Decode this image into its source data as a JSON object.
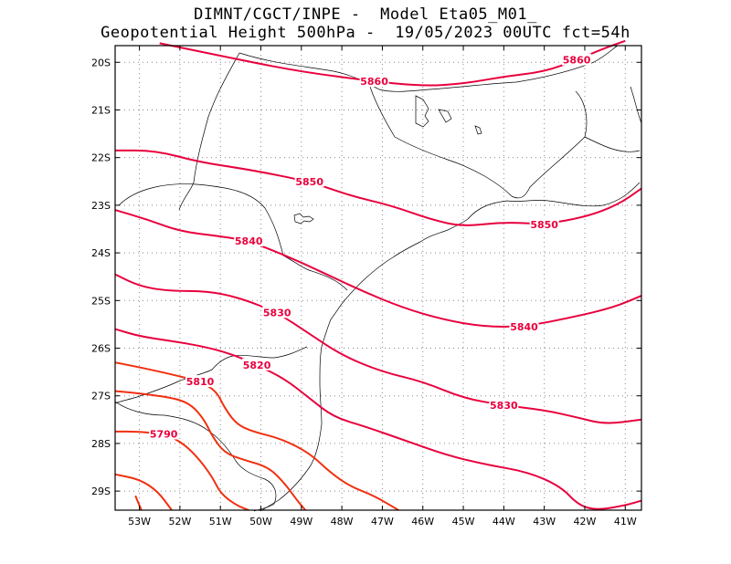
{
  "header": {
    "line1": "DIMNT/CGCT/INPE -  Model Eta05_M01_",
    "line2": "Geopotential Height 500hPa -  19/05/2023 00UTC fct=54h"
  },
  "axes": {
    "lat_labels": [
      "20S",
      "21S",
      "22S",
      "23S",
      "24S",
      "25S",
      "26S",
      "27S",
      "28S",
      "29S"
    ],
    "lon_labels": [
      "53W",
      "52W",
      "51W",
      "50W",
      "49W",
      "48W",
      "47W",
      "46W",
      "45W",
      "44W",
      "43W",
      "42W",
      "41W"
    ],
    "lon_range": [
      -53.6,
      -40.6
    ],
    "lat_range": [
      -29.4,
      -19.65
    ],
    "grid": "dotted"
  },
  "contours": {
    "units": "gpm",
    "colors": {
      "high": "#e8003d",
      "low": "#f03010",
      "coast": "#000000"
    },
    "lines": [
      {
        "level": 5860,
        "labels": [
          "5860",
          "5860"
        ],
        "points": [
          [
            -52.5,
            -19.6
          ],
          [
            -50.5,
            -19.95
          ],
          [
            -49,
            -20.2
          ],
          [
            -47.2,
            -20.4
          ],
          [
            -46,
            -20.5
          ],
          [
            -45,
            -20.45
          ],
          [
            -44,
            -20.3
          ],
          [
            -43,
            -20.2
          ],
          [
            -42.2,
            -19.95
          ],
          [
            -41.5,
            -19.7
          ],
          [
            -41,
            -19.55
          ]
        ]
      },
      {
        "level": 5850,
        "labels": [
          "5850",
          "5850"
        ],
        "points": [
          [
            -53.6,
            -21.85
          ],
          [
            -52.6,
            -21.85
          ],
          [
            -51.5,
            -22.1
          ],
          [
            -50.3,
            -22.25
          ],
          [
            -48.8,
            -22.5
          ],
          [
            -47.8,
            -22.8
          ],
          [
            -46.8,
            -23.0
          ],
          [
            -45.8,
            -23.3
          ],
          [
            -45,
            -23.45
          ],
          [
            -44,
            -23.35
          ],
          [
            -43,
            -23.4
          ],
          [
            -42,
            -23.25
          ],
          [
            -41.2,
            -23.0
          ],
          [
            -40.6,
            -22.65
          ]
        ]
      },
      {
        "level": 5840,
        "labels": [
          "5840",
          "5840"
        ],
        "points": [
          [
            -53.6,
            -23.1
          ],
          [
            -52.8,
            -23.3
          ],
          [
            -52,
            -23.55
          ],
          [
            -51,
            -23.65
          ],
          [
            -50.3,
            -23.75
          ],
          [
            -49.4,
            -24.05
          ],
          [
            -48.5,
            -24.4
          ],
          [
            -47.5,
            -24.8
          ],
          [
            -46.5,
            -25.15
          ],
          [
            -45.5,
            -25.4
          ],
          [
            -44.5,
            -25.55
          ],
          [
            -43.5,
            -25.55
          ],
          [
            -42.3,
            -25.35
          ],
          [
            -41.3,
            -25.15
          ],
          [
            -40.6,
            -24.9
          ]
        ]
      },
      {
        "level": 5830,
        "labels": [
          "5830",
          "5830"
        ],
        "points": [
          [
            -53.6,
            -24.45
          ],
          [
            -53,
            -24.7
          ],
          [
            -52.3,
            -24.8
          ],
          [
            -51.3,
            -24.8
          ],
          [
            -50.5,
            -24.95
          ],
          [
            -49.6,
            -25.25
          ],
          [
            -48.8,
            -25.7
          ],
          [
            -48,
            -26.15
          ],
          [
            -47,
            -26.5
          ],
          [
            -46,
            -26.7
          ],
          [
            -45,
            -27.05
          ],
          [
            -44,
            -27.2
          ],
          [
            -43,
            -27.3
          ],
          [
            -42.2,
            -27.45
          ],
          [
            -41.5,
            -27.6
          ],
          [
            -40.6,
            -27.5
          ]
        ]
      },
      {
        "level": 5820,
        "labels": [
          "5820"
        ],
        "points": [
          [
            -53.6,
            -25.6
          ],
          [
            -53,
            -25.75
          ],
          [
            -52.2,
            -25.85
          ],
          [
            -51.5,
            -25.95
          ],
          [
            -50.8,
            -26.1
          ],
          [
            -50.1,
            -26.35
          ],
          [
            -49.4,
            -26.65
          ],
          [
            -48.8,
            -27.05
          ],
          [
            -48.2,
            -27.45
          ],
          [
            -47.4,
            -27.65
          ],
          [
            -46.4,
            -27.95
          ],
          [
            -45.4,
            -28.25
          ],
          [
            -44.4,
            -28.45
          ],
          [
            -43.4,
            -28.6
          ],
          [
            -42.6,
            -28.9
          ],
          [
            -42.15,
            -29.3
          ],
          [
            -41.7,
            -29.4
          ],
          [
            -41,
            -29.3
          ],
          [
            -40.6,
            -29.2
          ]
        ]
      },
      {
        "level": 5810,
        "labels": [
          "5810"
        ],
        "points": [
          [
            -53.6,
            -26.3
          ],
          [
            -53,
            -26.4
          ],
          [
            -52.2,
            -26.55
          ],
          [
            -51.5,
            -26.7
          ],
          [
            -51.1,
            -26.9
          ],
          [
            -50.9,
            -27.25
          ],
          [
            -50.6,
            -27.6
          ],
          [
            -50.2,
            -27.75
          ],
          [
            -49.5,
            -27.9
          ],
          [
            -48.8,
            -28.2
          ],
          [
            -48.3,
            -28.6
          ],
          [
            -47.8,
            -28.9
          ],
          [
            -47.2,
            -29.1
          ],
          [
            -46.6,
            -29.4
          ]
        ]
      },
      {
        "level": 5800,
        "labels": [],
        "points": [
          [
            -53.6,
            -26.9
          ],
          [
            -53,
            -26.95
          ],
          [
            -52.1,
            -27.05
          ],
          [
            -51.7,
            -27.2
          ],
          [
            -51.4,
            -27.5
          ],
          [
            -51.2,
            -27.85
          ],
          [
            -50.9,
            -28.2
          ],
          [
            -50.4,
            -28.35
          ],
          [
            -49.8,
            -28.5
          ],
          [
            -49.4,
            -28.85
          ],
          [
            -49.1,
            -29.2
          ],
          [
            -48.9,
            -29.4
          ]
        ]
      },
      {
        "level": 5790,
        "labels": [
          "5790"
        ],
        "points": [
          [
            -53.6,
            -27.75
          ],
          [
            -53,
            -27.75
          ],
          [
            -52.4,
            -27.8
          ],
          [
            -52,
            -27.95
          ],
          [
            -51.6,
            -28.25
          ],
          [
            -51.2,
            -28.7
          ],
          [
            -51,
            -29.05
          ],
          [
            -50.6,
            -29.3
          ],
          [
            -50.3,
            -29.4
          ]
        ]
      },
      {
        "level": 5780,
        "labels": [],
        "points": [
          [
            -53.6,
            -28.65
          ],
          [
            -53,
            -28.75
          ],
          [
            -52.55,
            -29.0
          ],
          [
            -52.2,
            -29.4
          ]
        ]
      },
      {
        "level": 5770,
        "labels": [],
        "points": [
          [
            -53.1,
            -29.1
          ],
          [
            -52.95,
            -29.4
          ]
        ]
      }
    ]
  }
}
